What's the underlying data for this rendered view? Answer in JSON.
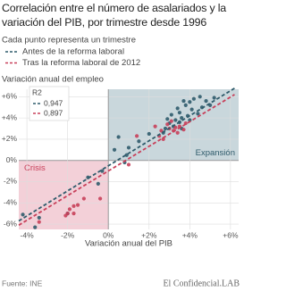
{
  "chart_data": {
    "type": "scatter",
    "title": "Correlación entre el número de asalariados y la variación del PIB, por trimestre desde 1996",
    "subtitle": "Cada punto representa un trimestre",
    "y_label": "Variación anual del empleo",
    "x_label": "Variación anual del PIB",
    "r2_title": "R2",
    "source": "Fuente: INE",
    "brand": "El Confidencial.LAB",
    "xlim": [
      -4.4,
      6.4
    ],
    "ylim": [
      -6.5,
      6.7
    ],
    "xticks": [
      {
        "value": -4,
        "label": "-4%"
      },
      {
        "value": -2,
        "label": "-2%"
      },
      {
        "value": 0,
        "label": "0%"
      },
      {
        "value": 2,
        "label": "+2%"
      },
      {
        "value": 4,
        "label": "+4%"
      },
      {
        "value": 6,
        "label": "+6%"
      }
    ],
    "yticks": [
      {
        "value": -6,
        "label": "-6%"
      },
      {
        "value": -4,
        "label": "-4%"
      },
      {
        "value": -2,
        "label": "-2%"
      },
      {
        "value": 0,
        "label": "0%"
      },
      {
        "value": 2,
        "label": "+2%"
      },
      {
        "value": 4,
        "label": "+4%"
      },
      {
        "value": 6,
        "label": "+6%"
      }
    ],
    "grid": true,
    "regions": [
      {
        "label": "Expansión",
        "xlim": [
          0,
          6.4
        ],
        "ylim": [
          0,
          6.7
        ],
        "color": "#c9d7dc"
      },
      {
        "label": "Crisis",
        "xlim": [
          -4.4,
          0
        ],
        "ylim": [
          -6.5,
          0
        ],
        "color": "#f3d0d8"
      }
    ],
    "series": [
      {
        "name": "Antes de la reforma laboral",
        "color": "#2f5b6b",
        "r2": "0,947",
        "trendline": {
          "x": [
            -4.4,
            6.2
          ],
          "y": [
            -5.7,
            6.8
          ]
        },
        "x": [
          3.5,
          3.8,
          4.0,
          4.2,
          4.5,
          4.8,
          5.0,
          4.6,
          4.1,
          3.9,
          3.6,
          3.3,
          3.0,
          3.2,
          2.8,
          2.7,
          3.6,
          4.4,
          5.2,
          3.4,
          3.7,
          3.5,
          2.9,
          3.1,
          1.0,
          0.8,
          0.3,
          0.5,
          -0.5,
          -1.0,
          -3.6,
          -4.2,
          -3.4,
          -2.0,
          -0.3,
          0.9,
          1.5,
          2.0,
          4.0
        ],
        "values": [
          4.5,
          5.2,
          5.5,
          5.8,
          6.0,
          5.6,
          5.2,
          5.0,
          4.8,
          4.2,
          4.0,
          3.8,
          3.5,
          3.2,
          3.0,
          2.6,
          3.0,
          4.4,
          5.9,
          4.9,
          5.6,
          3.6,
          3.9,
          4.3,
          1.2,
          -0.2,
          1.0,
          2.2,
          -2.2,
          -1.6,
          -6.3,
          -5.1,
          -5.4,
          -5.0,
          -1.0,
          0.5,
          1.8,
          2.5,
          3.8
        ]
      },
      {
        "name": "Tras la reforma laboral de 2012",
        "color": "#c8405a",
        "r2": "0,897",
        "trendline": {
          "x": [
            -4.4,
            6.2
          ],
          "y": [
            -6.1,
            6.2
          ]
        },
        "x": [
          -1.9,
          -2.0,
          -1.7,
          -1.2,
          -2.1,
          -1.5,
          2.6,
          3.0,
          3.2,
          3.4,
          2.9,
          3.5,
          3.1,
          2.5,
          3.3,
          3.7,
          3.8,
          2.7,
          1.4,
          1.0,
          2.3,
          -0.4,
          -3.4,
          -1.7
        ],
        "values": [
          -4.6,
          -5.0,
          -4.3,
          -3.6,
          -5.2,
          -4.2,
          2.8,
          3.0,
          2.8,
          2.6,
          3.4,
          3.2,
          3.7,
          2.3,
          3.1,
          2.9,
          3.5,
          2.0,
          2.3,
          -0.4,
          3.2,
          -3.6,
          -5.8,
          -5.0
        ]
      }
    ]
  }
}
